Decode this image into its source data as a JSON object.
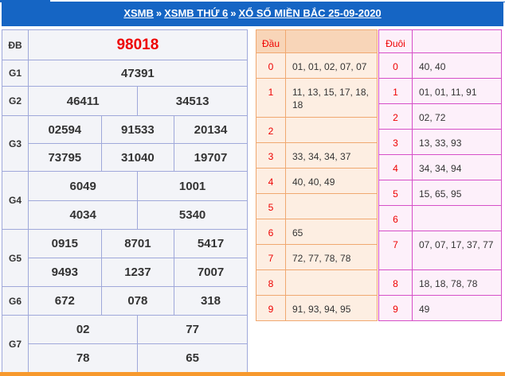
{
  "breadcrumb": [
    "XSMB",
    "XSMB THỨ 6",
    "XỔ SỐ MIỀN BẮC 25-09-2020"
  ],
  "separator": "»",
  "results": {
    "db": {
      "label": "ĐB",
      "values": [
        "98018"
      ]
    },
    "g1": {
      "label": "G1",
      "values": [
        "47391"
      ]
    },
    "g2": {
      "label": "G2",
      "values": [
        "46411",
        "34513"
      ]
    },
    "g3": {
      "label": "G3",
      "values": [
        "02594",
        "91533",
        "20134",
        "73795",
        "31040",
        "19707"
      ]
    },
    "g4": {
      "label": "G4",
      "values": [
        "6049",
        "1001",
        "4034",
        "5340"
      ]
    },
    "g5": {
      "label": "G5",
      "values": [
        "0915",
        "8701",
        "5417",
        "9493",
        "1237",
        "7007"
      ]
    },
    "g6": {
      "label": "G6",
      "values": [
        "672",
        "078",
        "318"
      ]
    },
    "g7": {
      "label": "G7",
      "values": [
        "02",
        "77",
        "78",
        "65"
      ]
    }
  },
  "dau": {
    "header": "Đầu",
    "rows": [
      {
        "k": "0",
        "v": "01, 01, 02, 07, 07"
      },
      {
        "k": "1",
        "v": "11, 13, 15, 17, 18, 18"
      },
      {
        "k": "2",
        "v": ""
      },
      {
        "k": "3",
        "v": "33, 34, 34, 37"
      },
      {
        "k": "4",
        "v": "40, 40, 49"
      },
      {
        "k": "5",
        "v": ""
      },
      {
        "k": "6",
        "v": "65"
      },
      {
        "k": "7",
        "v": "72, 77, 78, 78"
      },
      {
        "k": "8",
        "v": ""
      },
      {
        "k": "9",
        "v": "91, 93, 94, 95"
      }
    ]
  },
  "duoi": {
    "header": "Đuôi",
    "rows": [
      {
        "k": "0",
        "v": "40, 40"
      },
      {
        "k": "1",
        "v": "01, 01, 11, 91"
      },
      {
        "k": "2",
        "v": "02, 72"
      },
      {
        "k": "3",
        "v": "13, 33, 93"
      },
      {
        "k": "4",
        "v": "34, 34, 94"
      },
      {
        "k": "5",
        "v": "15, 65, 95"
      },
      {
        "k": "6",
        "v": ""
      },
      {
        "k": "7",
        "v": "07, 07, 17, 37, 77"
      },
      {
        "k": "8",
        "v": "18, 18, 78, 78"
      },
      {
        "k": "9",
        "v": "49"
      }
    ]
  },
  "colors": {
    "header": "#1565c4",
    "accent": "#e00000",
    "footer": "#f7992d"
  }
}
